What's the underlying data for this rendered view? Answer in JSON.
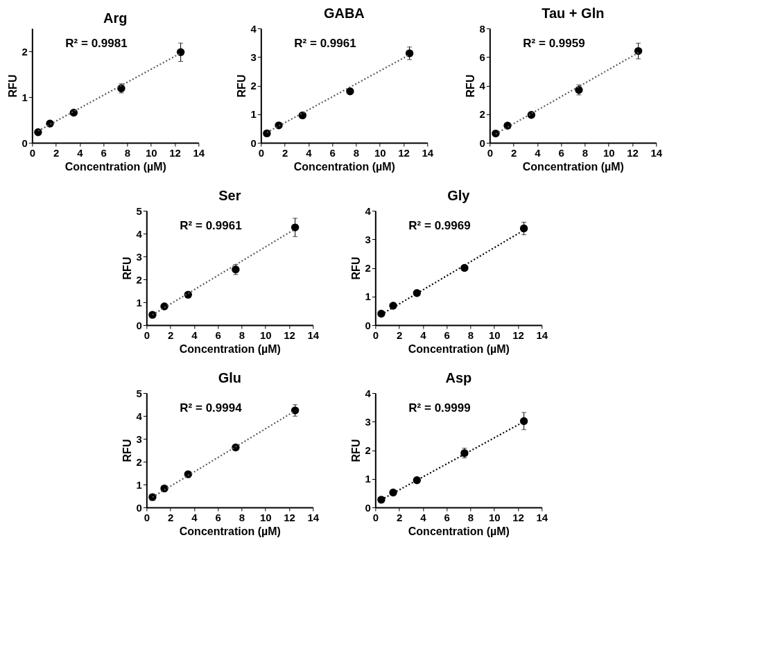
{
  "chart_data": [
    {
      "type": "scatter",
      "title": "Arg",
      "xlabel": "Concentration (µM)",
      "ylabel": "RFU",
      "annotations": [
        "R² = 0.9981"
      ],
      "xlim": [
        0,
        14
      ],
      "xticks": [
        0,
        2,
        4,
        6,
        8,
        10,
        12,
        14
      ],
      "ylim": [
        0,
        2.5
      ],
      "yticks": [
        0,
        1,
        2
      ],
      "grid": false,
      "series": [
        {
          "type": "scatter",
          "marker": "circle",
          "color": "#000000",
          "x": [
            0.5,
            1.5,
            3.5,
            7.5,
            12.5
          ],
          "values": [
            0.23,
            0.42,
            0.66,
            1.19,
            1.98
          ],
          "errors": [
            0.03,
            0.04,
            0.04,
            0.1,
            0.2
          ]
        },
        {
          "type": "line",
          "line_style": "dotted",
          "color": "#595959",
          "x": [
            0.5,
            12.5
          ],
          "values": [
            0.26,
            1.96
          ]
        }
      ]
    },
    {
      "type": "scatter",
      "title": "GABA",
      "xlabel": "Concentration (µM)",
      "ylabel": "RFU",
      "annotations": [
        "R² = 0.9961"
      ],
      "xlim": [
        0,
        14
      ],
      "xticks": [
        0,
        2,
        4,
        6,
        8,
        10,
        12,
        14
      ],
      "ylim": [
        0,
        4
      ],
      "yticks": [
        0,
        1,
        2,
        3,
        4
      ],
      "grid": false,
      "series": [
        {
          "type": "scatter",
          "marker": "circle",
          "color": "#000000",
          "x": [
            0.5,
            1.5,
            3.5,
            7.5,
            12.5
          ],
          "values": [
            0.33,
            0.61,
            0.96,
            1.8,
            3.13
          ],
          "errors": [
            0.04,
            0.05,
            0.06,
            0.08,
            0.22
          ]
        },
        {
          "type": "line",
          "line_style": "dotted",
          "color": "#595959",
          "x": [
            0.5,
            12.5
          ],
          "values": [
            0.36,
            3.08
          ]
        }
      ]
    },
    {
      "type": "scatter",
      "title": "Tau + Gln",
      "xlabel": "Concentration (µM)",
      "ylabel": "RFU",
      "annotations": [
        "R² = 0.9959"
      ],
      "xlim": [
        0,
        14
      ],
      "xticks": [
        0,
        2,
        4,
        6,
        8,
        10,
        12,
        14
      ],
      "ylim": [
        0,
        8
      ],
      "yticks": [
        0,
        2,
        4,
        6,
        8
      ],
      "grid": false,
      "series": [
        {
          "type": "scatter",
          "marker": "circle",
          "color": "#000000",
          "x": [
            0.5,
            1.5,
            3.5,
            7.5,
            12.5
          ],
          "values": [
            0.65,
            1.2,
            1.95,
            3.7,
            6.42
          ],
          "errors": [
            0.08,
            0.1,
            0.12,
            0.35,
            0.55
          ]
        },
        {
          "type": "line",
          "line_style": "dotted",
          "color": "#595959",
          "x": [
            0.5,
            12.5
          ],
          "values": [
            0.62,
            6.3
          ]
        }
      ]
    },
    {
      "type": "scatter",
      "title": "Ser",
      "xlabel": "Concentration (µM)",
      "ylabel": "RFU",
      "annotations": [
        "R² = 0.9961"
      ],
      "xlim": [
        0,
        14
      ],
      "xticks": [
        0,
        2,
        4,
        6,
        8,
        10,
        12,
        14
      ],
      "ylim": [
        0,
        5
      ],
      "yticks": [
        0,
        1,
        2,
        3,
        4,
        5
      ],
      "grid": false,
      "series": [
        {
          "type": "scatter",
          "marker": "circle",
          "color": "#000000",
          "x": [
            0.5,
            1.5,
            3.5,
            7.5,
            12.5
          ],
          "values": [
            0.45,
            0.82,
            1.33,
            2.43,
            4.27
          ],
          "errors": [
            0.05,
            0.06,
            0.08,
            0.22,
            0.4
          ]
        },
        {
          "type": "line",
          "line_style": "dotted",
          "color": "#595959",
          "x": [
            0.5,
            12.5
          ],
          "values": [
            0.45,
            4.2
          ]
        }
      ]
    },
    {
      "type": "scatter",
      "title": "Gly",
      "xlabel": "Concentration (µM)",
      "ylabel": "RFU",
      "annotations": [
        "R² = 0.9969"
      ],
      "xlim": [
        0,
        14
      ],
      "xticks": [
        0,
        2,
        4,
        6,
        8,
        10,
        12,
        14
      ],
      "ylim": [
        0,
        4
      ],
      "yticks": [
        0,
        1,
        2,
        3,
        4
      ],
      "grid": false,
      "series": [
        {
          "type": "scatter",
          "marker": "circle",
          "color": "#000000",
          "x": [
            0.5,
            1.5,
            3.5,
            7.5,
            12.5
          ],
          "values": [
            0.4,
            0.68,
            1.12,
            2.0,
            3.38
          ],
          "errors": [
            0.04,
            0.05,
            0.06,
            0.08,
            0.22
          ]
        },
        {
          "type": "line",
          "line_style": "dotted",
          "color": "#000000",
          "x": [
            0.5,
            12.5
          ],
          "values": [
            0.37,
            3.32
          ]
        }
      ]
    },
    {
      "type": "scatter",
      "title": "Glu",
      "xlabel": "Concentration (µM)",
      "ylabel": "RFU",
      "annotations": [
        "R² = 0.9994"
      ],
      "xlim": [
        0,
        14
      ],
      "xticks": [
        0,
        2,
        4,
        6,
        8,
        10,
        12,
        14
      ],
      "ylim": [
        0,
        5
      ],
      "yticks": [
        0,
        1,
        2,
        3,
        4,
        5
      ],
      "grid": false,
      "series": [
        {
          "type": "scatter",
          "marker": "circle",
          "color": "#000000",
          "x": [
            0.5,
            1.5,
            3.5,
            7.5,
            12.5
          ],
          "values": [
            0.45,
            0.83,
            1.45,
            2.62,
            4.24
          ],
          "errors": [
            0.05,
            0.06,
            0.08,
            0.1,
            0.25
          ]
        },
        {
          "type": "line",
          "line_style": "dotted",
          "color": "#595959",
          "x": [
            0.5,
            12.5
          ],
          "values": [
            0.45,
            4.22
          ]
        }
      ]
    },
    {
      "type": "scatter",
      "title": "Asp",
      "xlabel": "Concentration (µM)",
      "ylabel": "RFU",
      "annotations": [
        "R² = 0.9999"
      ],
      "xlim": [
        0,
        14
      ],
      "xticks": [
        0,
        2,
        4,
        6,
        8,
        10,
        12,
        14
      ],
      "ylim": [
        0,
        4
      ],
      "yticks": [
        0,
        1,
        2,
        3,
        4
      ],
      "grid": false,
      "series": [
        {
          "type": "scatter",
          "marker": "circle",
          "color": "#000000",
          "x": [
            0.5,
            1.5,
            3.5,
            7.5,
            12.5
          ],
          "values": [
            0.27,
            0.52,
            0.95,
            1.9,
            3.02
          ],
          "errors": [
            0.04,
            0.05,
            0.06,
            0.17,
            0.3
          ]
        },
        {
          "type": "line",
          "line_style": "dotted",
          "color": "#000000",
          "x": [
            0.5,
            12.5
          ],
          "values": [
            0.27,
            3.0
          ]
        }
      ]
    }
  ]
}
